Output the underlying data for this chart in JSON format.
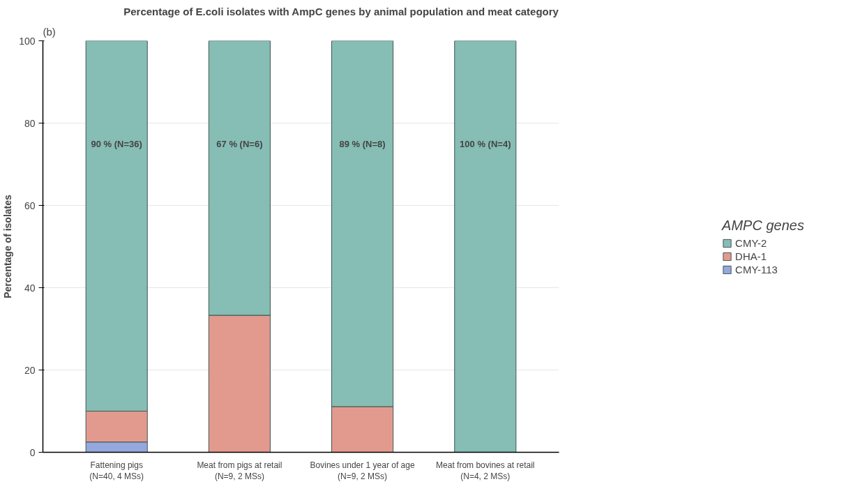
{
  "chart_data": {
    "type": "bar",
    "stacked": true,
    "title": "Percentage of E.coli isolates with AmpC genes by animal population and meat category",
    "ylabel": "Percentage of isolates",
    "legend_title": "AMPC genes",
    "categories": [
      "Fattening pigs\n(N=40, 4 MSs)",
      "Meat from pigs at retail\n(N=9, 2 MSs)",
      "Bovines under 1 year of age\n(N=9, 2 MSs)",
      "Meat from bovines at retail\n(N=4, 2 MSs)"
    ],
    "series": [
      {
        "name": "CMY-113",
        "color": "#94a8dc",
        "values": [
          2.5,
          null,
          null,
          null
        ]
      },
      {
        "name": "DHA-1",
        "color": "#e39a8e",
        "values": [
          7.5,
          33.3,
          11.1,
          null
        ]
      },
      {
        "name": "CMY-2",
        "color": "#86bdb4",
        "values": [
          90,
          66.7,
          88.9,
          100
        ],
        "value_labels": [
          "90 % (N=36)",
          "67 % (N=6)",
          "89 % (N=8)",
          "100 % (N=4)"
        ]
      }
    ],
    "ylim": [
      0,
      100
    ],
    "yticks": [
      0,
      20,
      40,
      60,
      80,
      100
    ],
    "grid": "y",
    "legend": "right",
    "annotations": [
      "(b)"
    ]
  }
}
